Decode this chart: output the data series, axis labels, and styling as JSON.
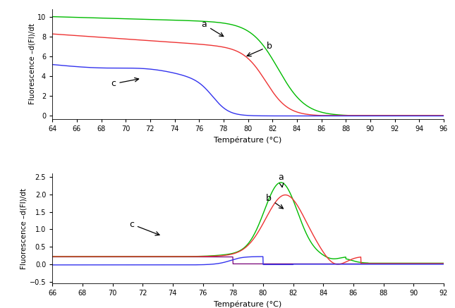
{
  "top": {
    "xlim": [
      64,
      96
    ],
    "ylim": [
      -0.3,
      10.8
    ],
    "xticks": [
      64,
      66,
      68,
      70,
      72,
      74,
      76,
      78,
      80,
      82,
      84,
      86,
      88,
      90,
      92,
      94,
      96
    ],
    "yticks": [
      0,
      2,
      4,
      6,
      8,
      10
    ],
    "xlabel": "Température (°C)",
    "ylabel": "Fluorescence –d(Fl)/dt",
    "colors": {
      "a": "#00bb00",
      "b": "#ee3333",
      "c": "#3333ee"
    },
    "extra_color": "#888800"
  },
  "bottom": {
    "xlim": [
      66,
      92
    ],
    "ylim": [
      -0.55,
      2.6
    ],
    "xticks": [
      66,
      68,
      70,
      72,
      74,
      76,
      78,
      80,
      82,
      84,
      86,
      88,
      90,
      92
    ],
    "yticks": [
      -0.5,
      0,
      0.5,
      1.0,
      1.5,
      2.0,
      2.5
    ],
    "xlabel": "Température (°C)",
    "ylabel": "Fluorescence –d(Fl)/dt",
    "colors": {
      "a": "#00bb00",
      "b": "#ee3333",
      "c": "#3333ee"
    },
    "extra_color": "#770077"
  }
}
